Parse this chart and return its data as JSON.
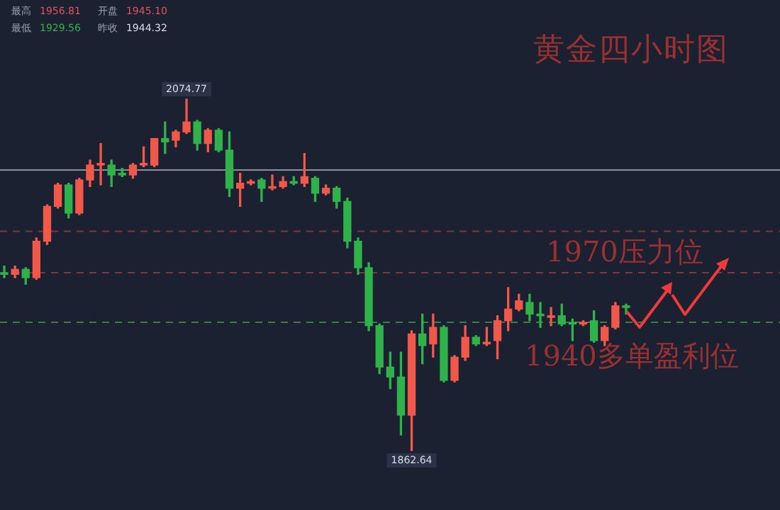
{
  "chart_data": {
    "type": "candlestick",
    "title": "黄金四小时图",
    "annotations": [
      "最高 1956.81",
      "开盘 1945.10",
      "最低 1929.56",
      "昨收 1944.32",
      "2074.77",
      "1862.64"
    ],
    "categories": [
      null,
      null,
      null,
      null,
      null,
      null,
      null,
      null,
      null,
      null,
      null,
      null,
      null,
      null,
      null,
      null,
      null,
      null,
      null,
      null,
      null,
      null,
      null,
      null,
      null,
      null,
      null,
      null,
      null,
      null,
      null,
      null,
      null,
      null,
      null,
      null,
      null,
      null,
      null,
      null,
      null,
      null,
      null,
      null,
      null,
      null,
      null,
      null,
      null,
      null,
      null,
      null,
      null,
      null,
      null,
      null,
      null,
      null,
      null
    ],
    "ohlc": [
      [
        1970,
        1974,
        1967,
        1969
      ],
      [
        1969,
        1974,
        1967,
        1972
      ],
      [
        1972,
        1973,
        1963,
        1967
      ],
      [
        1967,
        1991,
        1966,
        1989
      ],
      [
        1989,
        2011,
        1987,
        2010
      ],
      [
        2010,
        2024,
        2009,
        2023
      ],
      [
        2023,
        2024,
        2003,
        2006
      ],
      [
        2006,
        2027,
        2005,
        2026
      ],
      [
        2026,
        2038,
        2022,
        2035
      ],
      [
        2035,
        2048,
        2023,
        2036
      ],
      [
        2035,
        2038,
        2022,
        2029
      ],
      [
        2030,
        2033,
        2028,
        2029
      ],
      [
        2029,
        2036,
        2027,
        2035
      ],
      [
        2035,
        2046,
        2034,
        2036
      ],
      [
        2035,
        2051,
        2034,
        2051
      ],
      [
        2051,
        2061,
        2042,
        2049
      ],
      [
        2050,
        2056,
        2046,
        2055
      ],
      [
        2055,
        2074.77,
        2054,
        2061
      ],
      [
        2061,
        2062,
        2044,
        2048
      ],
      [
        2048,
        2057,
        2043,
        2056
      ],
      [
        2056,
        2057,
        2043,
        2044
      ],
      [
        2044,
        2055,
        2016,
        2021
      ],
      [
        2021,
        2030,
        2010,
        2024
      ],
      [
        2024,
        2026,
        2023,
        2025
      ],
      [
        2026,
        2027,
        2013,
        2021
      ],
      [
        2021,
        2029,
        2020,
        2022
      ],
      [
        2022,
        2028,
        2021,
        2025
      ],
      [
        2025,
        2028,
        2023,
        2024
      ],
      [
        2024,
        2042,
        2022,
        2028
      ],
      [
        2027,
        2028,
        2013,
        2018
      ],
      [
        2018,
        2023,
        2017,
        2021
      ],
      [
        2021,
        2022,
        2009,
        2013
      ],
      [
        2013,
        2015,
        1985,
        1989
      ],
      [
        1989,
        1991,
        1969,
        1973
      ],
      [
        1973,
        1976,
        1935,
        1938
      ],
      [
        1938,
        1939,
        1909,
        1913
      ],
      [
        1913,
        1922,
        1900,
        1907
      ],
      [
        1907,
        1922,
        1872,
        1884
      ],
      [
        1884,
        1935,
        1862.64,
        1933
      ],
      [
        1933,
        1945,
        1915,
        1926
      ],
      [
        1927,
        1945,
        1919,
        1937
      ],
      [
        1937,
        1938,
        1904,
        1905
      ],
      [
        1905,
        1920,
        1904,
        1919
      ],
      [
        1919,
        1938,
        1917,
        1931
      ],
      [
        1931,
        1932,
        1926,
        1927
      ],
      [
        1927,
        1937,
        1926,
        1928
      ],
      [
        1929,
        1944,
        1918,
        1941
      ],
      [
        1941,
        1961,
        1935,
        1948
      ],
      [
        1948,
        1957,
        1947,
        1953
      ],
      [
        1952,
        1957,
        1941,
        1945
      ],
      [
        1945,
        1952,
        1937,
        1944
      ],
      [
        1943,
        1949,
        1938,
        1944
      ],
      [
        1944,
        1951,
        1938,
        1939
      ],
      [
        1940,
        1942,
        1929,
        1939
      ],
      [
        1939,
        1941,
        1938,
        1940
      ],
      [
        1941,
        1947,
        1928,
        1929
      ],
      [
        1929,
        1938,
        1926,
        1937
      ],
      [
        1937,
        1952,
        1936,
        1950
      ],
      [
        1950,
        1951,
        1945,
        1949
      ]
    ],
    "colors": [
      "#2fb24a",
      "#f0584a",
      "#2fb24a",
      "#f0584a",
      "#f0584a",
      "#f0584a",
      "#2fb24a",
      "#f0584a",
      "#f0584a",
      "#f0584a",
      "#2fb24a",
      "#2fb24a",
      "#f0584a",
      "#f0584a",
      "#f0584a",
      "#2fb24a",
      "#f0584a",
      "#f0584a",
      "#2fb24a",
      "#f0584a",
      "#2fb24a",
      "#2fb24a",
      "#f0584a",
      "#f0584a",
      "#2fb24a",
      "#f0584a",
      "#f0584a",
      "#2fb24a",
      "#f0584a",
      "#2fb24a",
      "#f0584a",
      "#2fb24a",
      "#2fb24a",
      "#2fb24a",
      "#2fb24a",
      "#2fb24a",
      "#2fb24a",
      "#2fb24a",
      "#f0584a",
      "#2fb24a",
      "#f0584a",
      "#2fb24a",
      "#f0584a",
      "#f0584a",
      "#2fb24a",
      "#f0584a",
      "#f0584a",
      "#f0584a",
      "#f0584a",
      "#2fb24a",
      "#2fb24a",
      "#f0584a",
      "#2fb24a",
      "#2fb24a",
      "#f0584a",
      "#2fb24a",
      "#f0584a",
      "#f0584a",
      "#2fb24a"
    ],
    "ref_lines": [
      {
        "axis": "y",
        "value": 2032,
        "color": "#8a8f9c",
        "line_style": "solid"
      },
      {
        "axis": "y",
        "value": 1995,
        "color": "#7a3a40",
        "line_style": "dashed"
      },
      {
        "axis": "y",
        "value": 1970,
        "color": "#7a3a40",
        "line_style": "dashed",
        "label": "1970压力位"
      },
      {
        "axis": "y",
        "value": 1940,
        "color": "#3f7a4a",
        "line_style": "dashed",
        "label": "1940多单盈利位"
      }
    ],
    "tick_labels": false
  }
}
